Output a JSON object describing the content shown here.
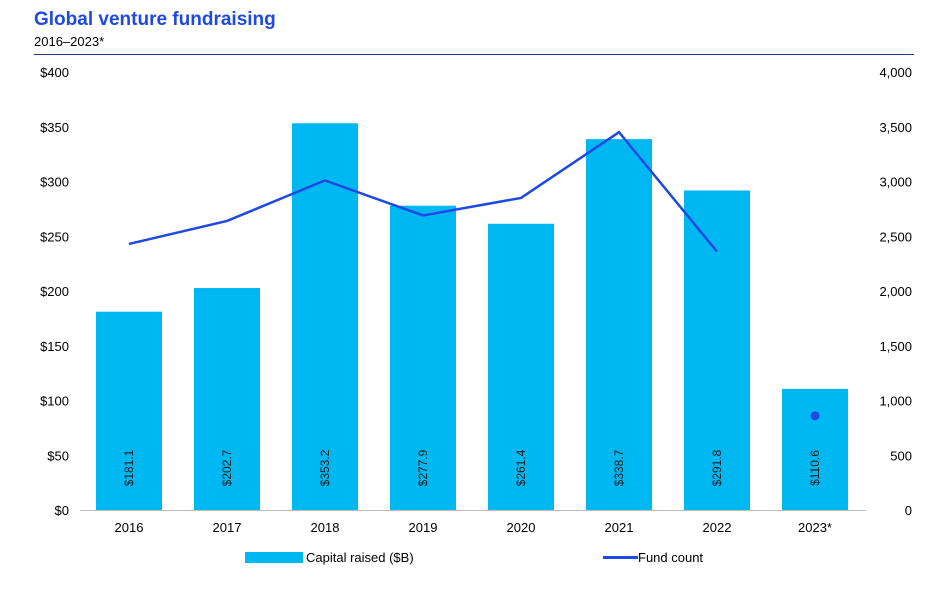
{
  "header": {
    "title": "Global venture fundraising",
    "subtitle": "2016–2023*"
  },
  "chart_data": {
    "type": "bar",
    "title": "Global venture fundraising",
    "subtitle": "2016–2023*",
    "categories": [
      "2016",
      "2017",
      "2018",
      "2019",
      "2020",
      "2021",
      "2022",
      "2023*"
    ],
    "series": [
      {
        "name": "Capital raised ($B)",
        "type": "bar",
        "axis": "left",
        "color": "#00b8f1",
        "values": [
          181.1,
          202.7,
          353.2,
          277.9,
          261.4,
          338.7,
          291.8,
          110.6
        ],
        "labels": [
          "$181.1",
          "$202.7",
          "$353.2",
          "$277.9",
          "$261.4",
          "$338.7",
          "$291.8",
          "$110.6"
        ]
      },
      {
        "name": "Fund count",
        "type": "line",
        "axis": "right",
        "color": "#1e49e2",
        "values": [
          2430,
          2640,
          3010,
          2690,
          2850,
          3450,
          2360,
          860
        ]
      }
    ],
    "ylim_left": [
      0,
      400
    ],
    "ylim_right": [
      0,
      4000
    ],
    "left_ticks": [
      "$0",
      "$50",
      "$100",
      "$150",
      "$200",
      "$250",
      "$300",
      "$350",
      "$400"
    ],
    "right_ticks": [
      "0",
      "500",
      "1,000",
      "1,500",
      "2,000",
      "2,500",
      "3,000",
      "3,500",
      "4,000"
    ],
    "grid": false,
    "legend": {
      "position": "bottom",
      "items": [
        "Capital raised ($B)",
        "Fund count"
      ]
    }
  }
}
